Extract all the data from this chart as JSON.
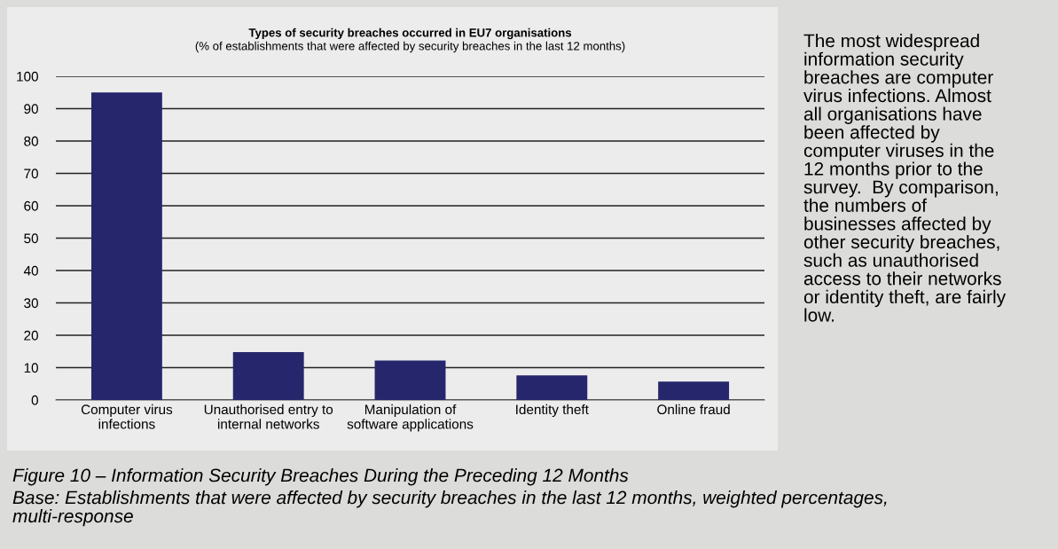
{
  "chart_data": {
    "type": "bar",
    "title": "Types of security breaches occurred in EU7 organisations",
    "subtitle": "(% of establishments that were affected by security breaches in the last 12 months)",
    "categories": [
      "Computer virus\ninfections",
      "Unauthorised entry to\ninternal networks",
      "Manipulation of\nsoftware applications",
      "Identity theft",
      "Online fraud"
    ],
    "values": [
      95,
      14.8,
      12.2,
      7.6,
      5.7
    ],
    "color": "#26266c",
    "ylim": [
      0,
      100
    ],
    "yticks": [
      0,
      10,
      20,
      30,
      40,
      50,
      60,
      70,
      80,
      90,
      100
    ],
    "grid": "y",
    "annotations": [
      "The most widespread\ninformation security\nbreaches are computer\nvirus infections. Almost\nall organisations have\nbeen affected by\ncomputer viruses in the\n12 months prior to the\nsurvey.  By comparison,\nthe numbers of\nbusinesses affected by\nother security breaches,\nsuch as unauthorised\naccess to their networks\nor identity theft, are fairly\nlow.",
      "Figure 10 – Information Security Breaches During the Preceding 12 Months",
      "Base: Establishments that were affected by security breaches in the last 12 months, weighted percentages,\nmulti-response"
    ]
  }
}
